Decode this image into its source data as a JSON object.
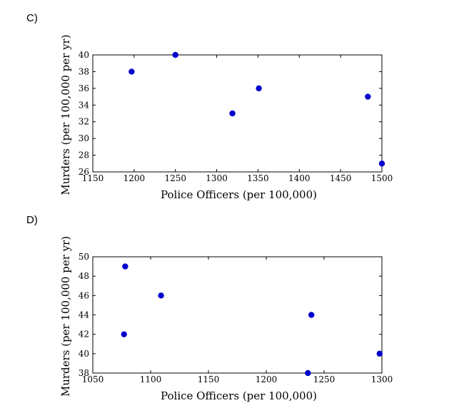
{
  "panels": [
    {
      "label": "C)"
    },
    {
      "label": "D)"
    }
  ],
  "colors": {
    "marker": "#0000cc",
    "axes": "#000000"
  },
  "chart_data": [
    {
      "type": "scatter",
      "xlabel": "Police Officers (per 100,000)",
      "ylabel": "Murders (per 100,000 per yr)",
      "xlim": [
        1150,
        1500
      ],
      "ylim": [
        26,
        40
      ],
      "xticks": [
        1150,
        1200,
        1250,
        1300,
        1350,
        1400,
        1450,
        1500
      ],
      "yticks": [
        26,
        28,
        30,
        32,
        34,
        36,
        38,
        40
      ],
      "points": [
        {
          "x": 1197,
          "y": 38
        },
        {
          "x": 1250,
          "y": 40
        },
        {
          "x": 1319,
          "y": 33
        },
        {
          "x": 1351,
          "y": 36
        },
        {
          "x": 1483,
          "y": 35
        },
        {
          "x": 1500,
          "y": 27
        }
      ],
      "grid": false
    },
    {
      "type": "scatter",
      "xlabel": "Police Officers (per 100,000)",
      "ylabel": "Murders (per 100,000 per yr)",
      "xlim": [
        1050,
        1300
      ],
      "ylim": [
        38,
        50
      ],
      "xticks": [
        1050,
        1100,
        1150,
        1200,
        1250,
        1300
      ],
      "yticks": [
        38,
        40,
        42,
        44,
        46,
        48,
        50
      ],
      "points": [
        {
          "x": 1078,
          "y": 49
        },
        {
          "x": 1077,
          "y": 42
        },
        {
          "x": 1109,
          "y": 46
        },
        {
          "x": 1239,
          "y": 44
        },
        {
          "x": 1236,
          "y": 38
        },
        {
          "x": 1298,
          "y": 40
        }
      ],
      "grid": false
    }
  ]
}
